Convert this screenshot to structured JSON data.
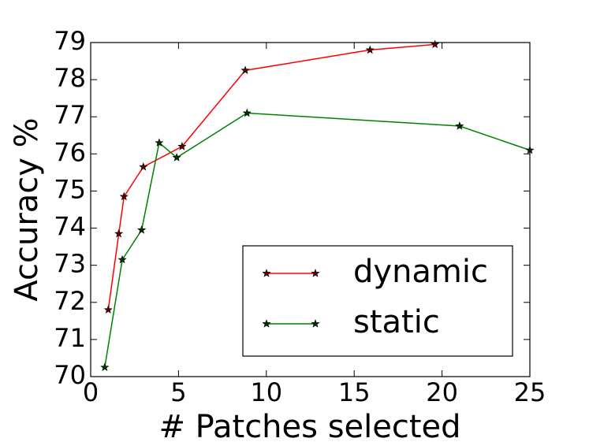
{
  "chart_data": {
    "type": "line",
    "xlabel": "# Patches selected",
    "ylabel": "Accuracy %",
    "series": [
      {
        "name": "dynamic",
        "color": "#ff0000",
        "marker_color": "#5a0000",
        "x": [
          1,
          1.6,
          1.9,
          3,
          5.2,
          8.8,
          15.9,
          19.6
        ],
        "values": [
          71.8,
          73.85,
          74.85,
          75.65,
          76.2,
          78.25,
          78.8,
          78.95
        ]
      },
      {
        "name": "static",
        "color": "#008000",
        "marker_color": "#003000",
        "x": [
          0.8,
          1.8,
          2.9,
          3.9,
          4.9,
          8.9,
          21,
          25
        ],
        "values": [
          70.25,
          73.15,
          73.95,
          76.3,
          75.9,
          77.1,
          76.75,
          76.1
        ]
      }
    ],
    "xlim": [
      0,
      25
    ],
    "xticks": [
      0,
      5,
      10,
      15,
      20,
      25
    ],
    "ylim": [
      70,
      79
    ],
    "yticks": [
      70,
      71,
      72,
      73,
      74,
      75,
      76,
      77,
      78,
      79
    ],
    "legend": "lower right",
    "grid": false
  }
}
